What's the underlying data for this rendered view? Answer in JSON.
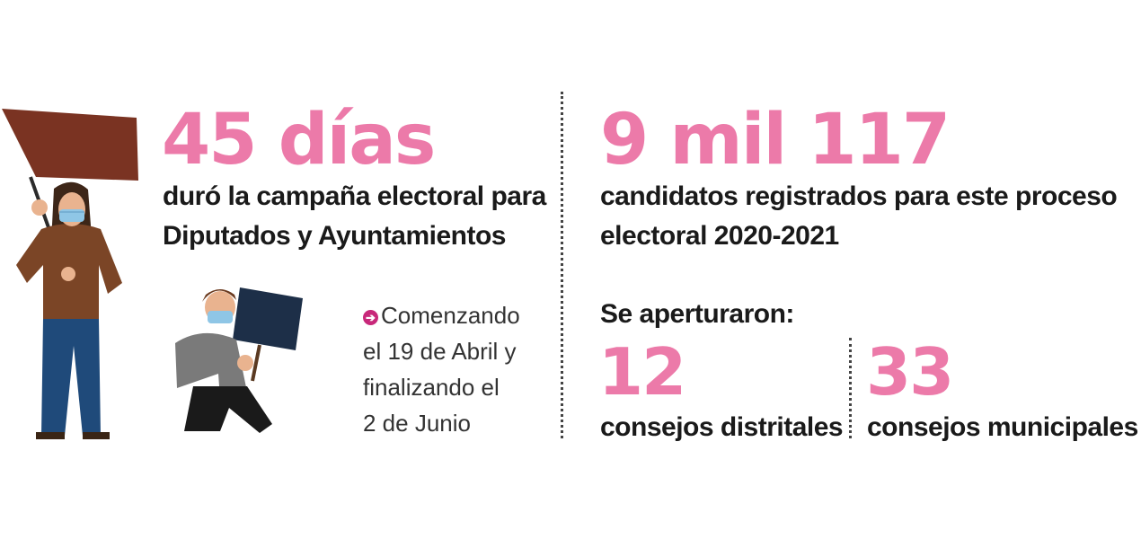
{
  "left": {
    "headline": "45 días",
    "description_line1": "duró la campaña electoral para",
    "description_line2": "Diputados y Ayuntamientos",
    "note_line1": "Comenzando",
    "note_line2": "el 19 de Abril y",
    "note_line3": "finalizando el",
    "note_line4": "2 de Junio",
    "bullet_icon": "arrow-circle-right-icon"
  },
  "right": {
    "headline": "9 mil 117",
    "description_line1": "candidatos registrados para este proceso",
    "description_line2": "electoral 2020-2021",
    "section_label": "Se aperturaron:",
    "stats": [
      {
        "value": "12",
        "label": "consejos distritales"
      },
      {
        "value": "33",
        "label": "consejos municipales"
      }
    ]
  },
  "colors": {
    "accent_pink": "#ec7aa9",
    "bullet_magenta": "#c8287a",
    "text_dark": "#1a1a1a"
  },
  "illustrations": [
    "protester-with-banner-illustration",
    "kneeling-protester-with-sign-illustration"
  ]
}
